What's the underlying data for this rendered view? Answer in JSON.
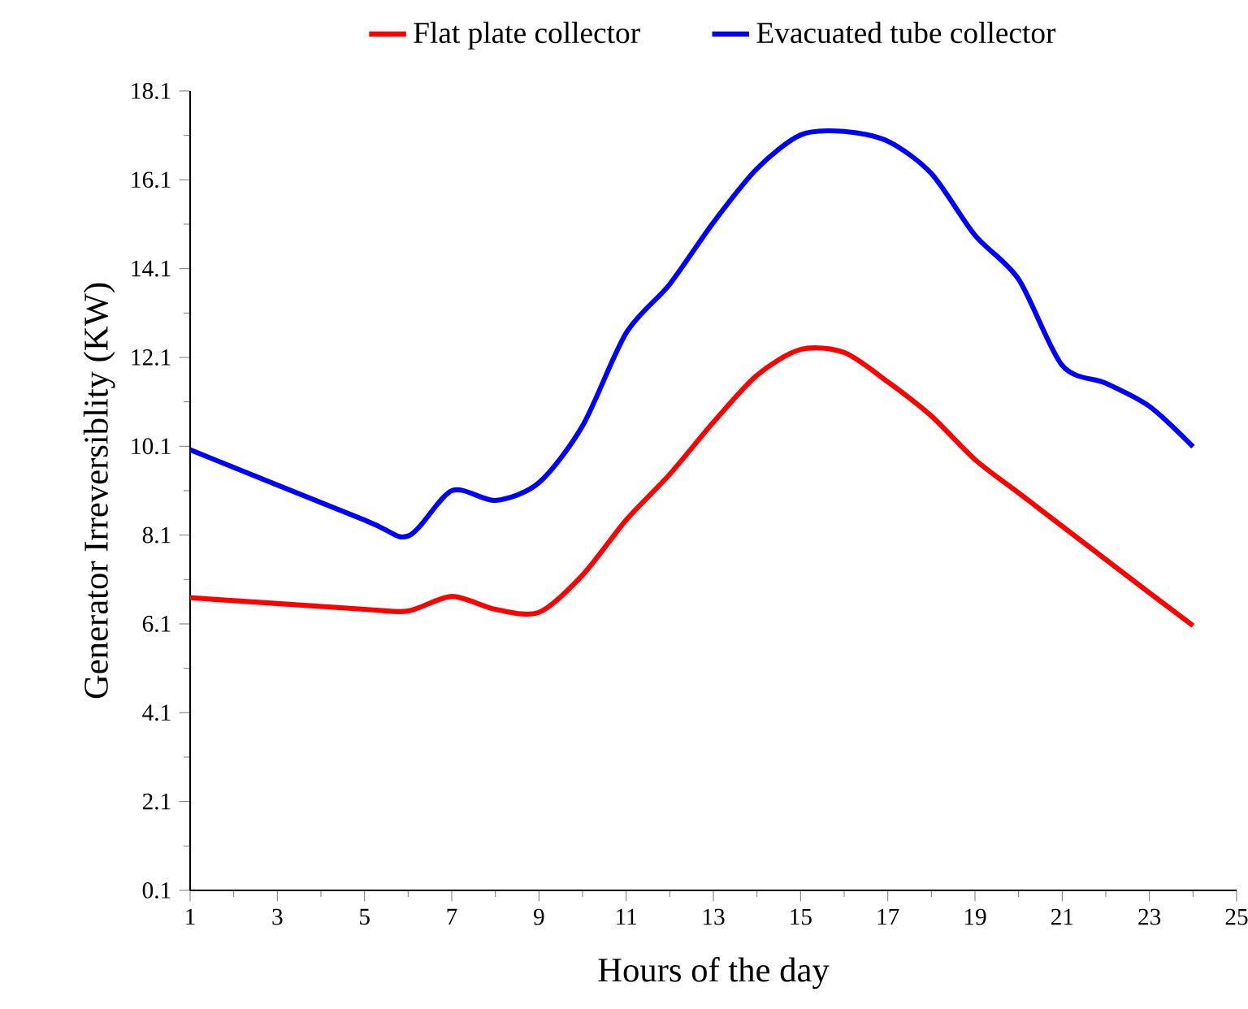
{
  "chart_data": {
    "type": "line",
    "xlabel": "Hours of the day",
    "ylabel": "Generator Irreversiblity (KW)",
    "x": [
      1,
      5,
      6,
      7,
      8,
      9,
      10,
      11,
      12,
      13,
      14,
      15,
      16,
      17,
      18,
      19,
      20,
      21,
      22,
      23,
      24
    ],
    "series": [
      {
        "name": "Flat plate collector",
        "color": "#ff0000",
        "values": [
          6.69,
          6.43,
          6.39,
          6.72,
          6.43,
          6.36,
          7.2,
          8.44,
          9.47,
          10.64,
          11.7,
          12.28,
          12.21,
          11.55,
          10.78,
          9.8,
          9.05,
          8.3,
          7.55,
          6.8,
          6.06
        ]
      },
      {
        "name": "Evacuated tube collector",
        "color": "#0000ff",
        "values": [
          10.02,
          8.44,
          8.08,
          9.1,
          8.88,
          9.28,
          10.56,
          12.65,
          13.75,
          15.14,
          16.35,
          17.11,
          17.19,
          16.97,
          16.24,
          14.85,
          13.86,
          11.92,
          11.52,
          11.0,
          10.09
        ]
      }
    ],
    "xlim": [
      1,
      25
    ],
    "xticks": [
      1,
      3,
      5,
      7,
      9,
      11,
      13,
      15,
      17,
      19,
      21,
      23,
      25
    ],
    "ylim": [
      0.1,
      18.1
    ],
    "yticks": [
      0.1,
      2.1,
      4.1,
      6.1,
      8.1,
      10.1,
      12.1,
      14.1,
      16.1,
      18.1
    ],
    "legend": "top",
    "grid": false,
    "marker": "none",
    "line_style": "solid"
  }
}
